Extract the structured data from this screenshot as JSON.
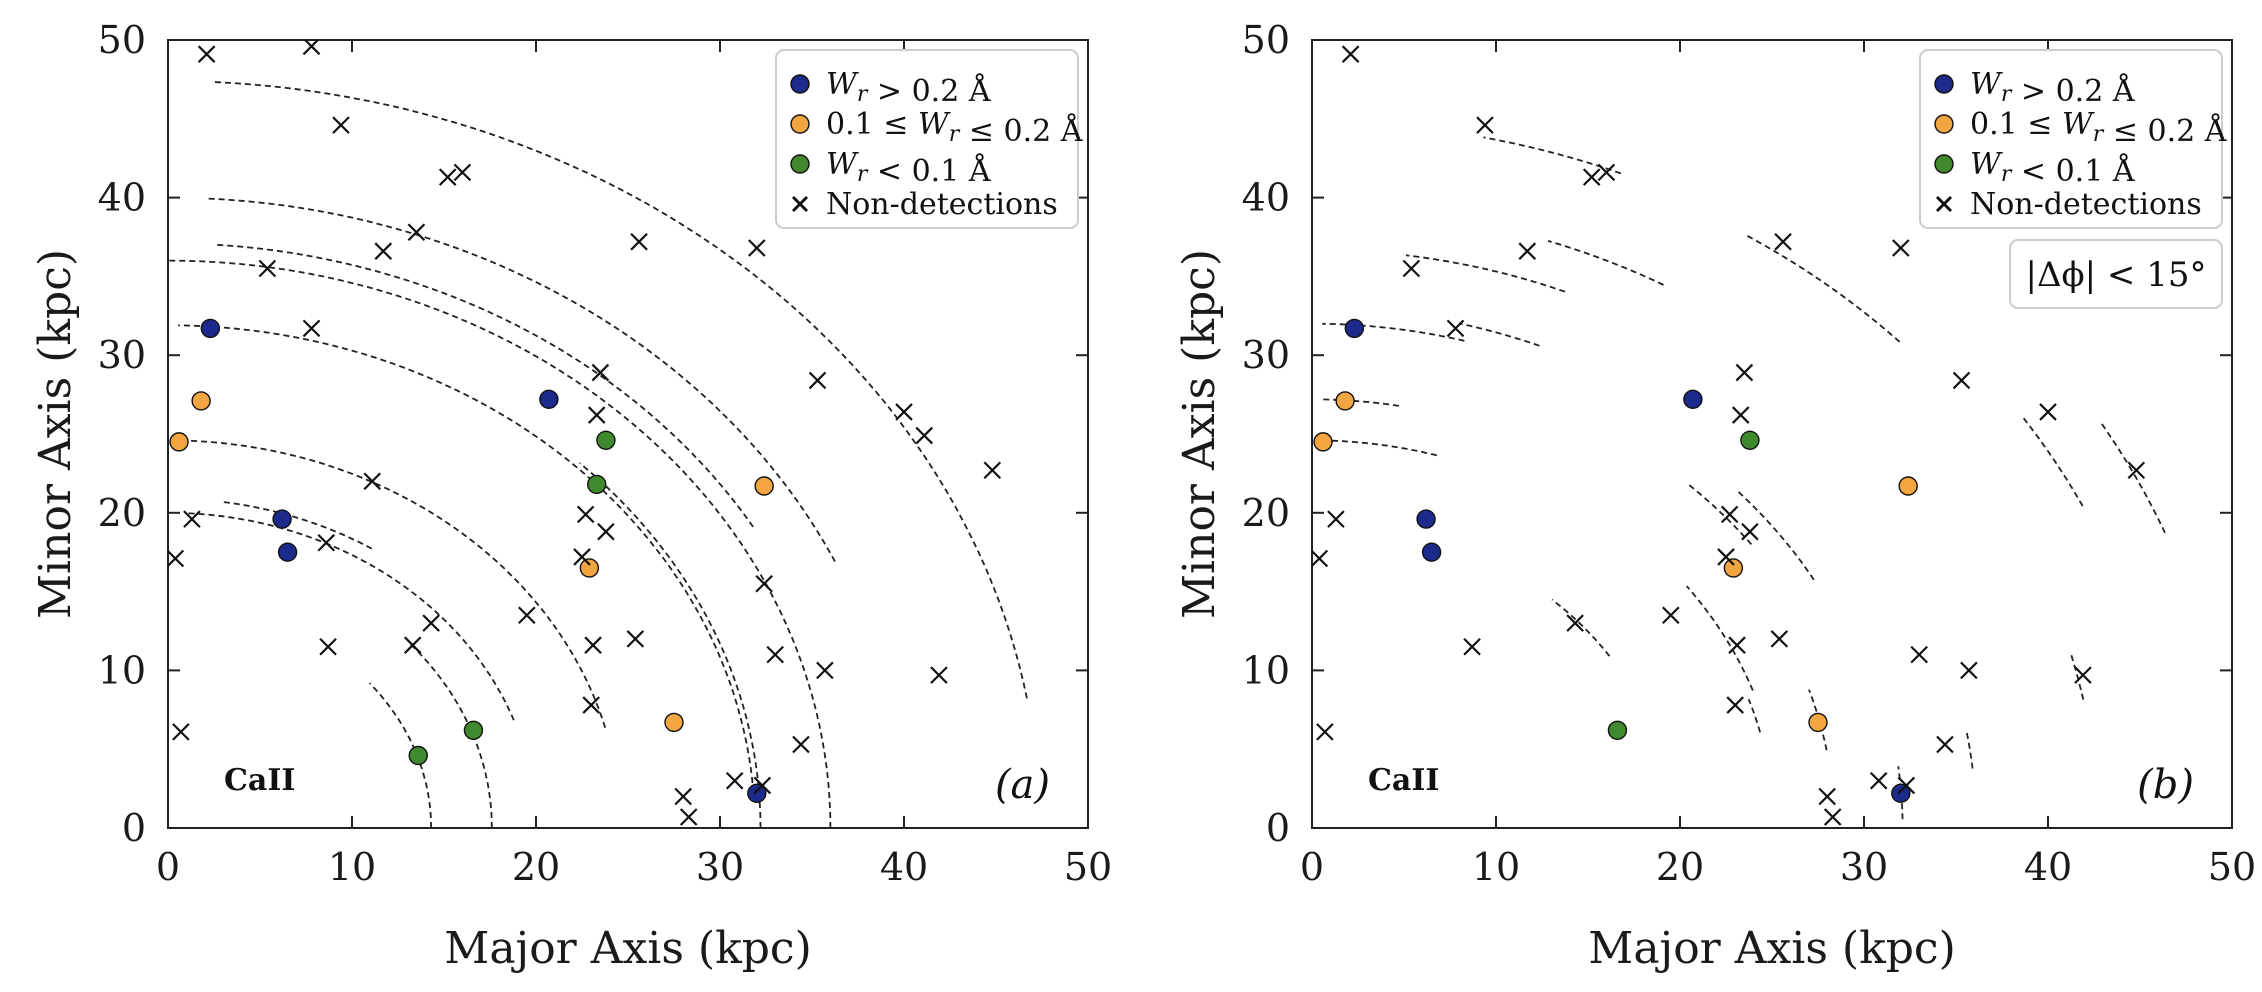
{
  "colors": {
    "strong": "#1c2a8c",
    "medium": "#f2a541",
    "weak": "#3f8a2e",
    "nondetection": "#111111",
    "arc": "#222222"
  },
  "chart_data": [
    {
      "type": "scatter",
      "panel_label": "(a)",
      "ion_label": "CaII",
      "angle_label": "",
      "xlabel": "Major Axis (kpc)",
      "ylabel": "Minor Axis (kpc)",
      "xlim": [
        0,
        50
      ],
      "ylim": [
        0,
        50
      ],
      "xticks": [
        "0",
        "10",
        "20",
        "30",
        "40",
        "50"
      ],
      "yticks": [
        "0",
        "10",
        "20",
        "30",
        "40",
        "50"
      ],
      "grid": false,
      "legend_position": "top-right",
      "legend": [
        {
          "key": "strong",
          "label": "W_r > 0.2 Å",
          "marker": "circle"
        },
        {
          "key": "medium",
          "label": "0.1 ≤ W_r ≤ 0.2 Å",
          "marker": "circle"
        },
        {
          "key": "weak",
          "label": "W_r < 0.1 Å",
          "marker": "circle"
        },
        {
          "key": "nondetection",
          "label": "Non-detections",
          "marker": "x"
        }
      ],
      "series": [
        {
          "key": "strong",
          "name": "W_r > 0.2 Å",
          "points": [
            [
              2.3,
              31.7
            ],
            [
              20.7,
              27.2
            ],
            [
              6.2,
              19.6
            ],
            [
              6.5,
              17.5
            ],
            [
              32.0,
              2.2
            ]
          ]
        },
        {
          "key": "medium",
          "name": "0.1 ≤ W_r ≤ 0.2 Å",
          "points": [
            [
              1.8,
              27.1
            ],
            [
              0.6,
              24.5
            ],
            [
              32.4,
              21.7
            ],
            [
              22.9,
              16.5
            ],
            [
              27.5,
              6.7
            ]
          ]
        },
        {
          "key": "weak",
          "name": "W_r < 0.1 Å",
          "points": [
            [
              23.8,
              24.6
            ],
            [
              23.3,
              21.8
            ],
            [
              16.6,
              6.2
            ],
            [
              13.6,
              4.6
            ]
          ]
        },
        {
          "key": "nondetection",
          "name": "Non-detections",
          "points": [
            [
              2.1,
              49.1
            ],
            [
              7.8,
              49.6
            ],
            [
              9.4,
              44.6
            ],
            [
              15.2,
              41.3
            ],
            [
              16.0,
              41.6
            ],
            [
              13.5,
              37.8
            ],
            [
              11.7,
              36.6
            ],
            [
              5.4,
              35.5
            ],
            [
              7.8,
              31.7
            ],
            [
              25.6,
              37.2
            ],
            [
              32.0,
              36.8
            ],
            [
              23.5,
              28.9
            ],
            [
              35.3,
              28.4
            ],
            [
              23.3,
              26.2
            ],
            [
              40.0,
              26.4
            ],
            [
              41.1,
              24.9
            ],
            [
              44.8,
              22.7
            ],
            [
              11.1,
              22.0
            ],
            [
              1.3,
              19.6
            ],
            [
              0.4,
              17.1
            ],
            [
              8.6,
              18.1
            ],
            [
              22.7,
              19.9
            ],
            [
              23.8,
              18.8
            ],
            [
              22.5,
              17.2
            ],
            [
              19.5,
              13.5
            ],
            [
              14.3,
              13.0
            ],
            [
              13.3,
              11.6
            ],
            [
              8.7,
              11.5
            ],
            [
              23.1,
              11.6
            ],
            [
              25.4,
              12.0
            ],
            [
              32.4,
              15.5
            ],
            [
              33.0,
              11.0
            ],
            [
              35.7,
              10.0
            ],
            [
              41.9,
              9.7
            ],
            [
              23.0,
              7.8
            ],
            [
              34.4,
              5.3
            ],
            [
              0.7,
              6.1
            ],
            [
              28.0,
              2.0
            ],
            [
              28.3,
              0.7
            ],
            [
              30.8,
              3.0
            ],
            [
              32.3,
              2.7
            ]
          ]
        }
      ],
      "arcs": [
        {
          "r": 14.3,
          "a0": 0,
          "a1": 40
        },
        {
          "r": 17.6,
          "a0": 0,
          "a1": 42
        },
        {
          "r": 20.0,
          "a0": 20,
          "a1": 87
        },
        {
          "r": 24.6,
          "a0": 15,
          "a1": 89
        },
        {
          "r": 31.9,
          "a0": 4,
          "a1": 89
        },
        {
          "r": 32.2,
          "a0": 0,
          "a1": 46
        },
        {
          "r": 36.0,
          "a0": 0,
          "a1": 90
        },
        {
          "r": 40.0,
          "a0": 25,
          "a1": 87
        },
        {
          "r": 47.4,
          "a0": 10,
          "a1": 87
        },
        {
          "r": 20.9,
          "a0": 58,
          "a1": 82
        },
        {
          "r": 37.1,
          "a0": 31,
          "a1": 86
        }
      ]
    },
    {
      "type": "scatter",
      "panel_label": "(b)",
      "ion_label": "CaII",
      "angle_label": "|Δϕ| < 15°",
      "xlabel": "Major Axis (kpc)",
      "ylabel": "Minor Axis (kpc)",
      "xlim": [
        0,
        50
      ],
      "ylim": [
        0,
        50
      ],
      "xticks": [
        "0",
        "10",
        "20",
        "30",
        "40",
        "50"
      ],
      "yticks": [
        "0",
        "10",
        "20",
        "30",
        "40",
        "50"
      ],
      "grid": false,
      "legend_position": "top-right",
      "legend": [
        {
          "key": "strong",
          "label": "W_r > 0.2 Å",
          "marker": "circle"
        },
        {
          "key": "medium",
          "label": "0.1 ≤ W_r ≤ 0.2 Å",
          "marker": "circle"
        },
        {
          "key": "weak",
          "label": "W_r < 0.1 Å",
          "marker": "circle"
        },
        {
          "key": "nondetection",
          "label": "Non-detections",
          "marker": "x"
        }
      ],
      "series": [
        {
          "key": "strong",
          "name": "W_r > 0.2 Å",
          "points": [
            [
              2.3,
              31.7
            ],
            [
              20.7,
              27.2
            ],
            [
              6.2,
              19.6
            ],
            [
              6.5,
              17.5
            ],
            [
              32.0,
              2.2
            ]
          ]
        },
        {
          "key": "medium",
          "name": "0.1 ≤ W_r ≤ 0.2 Å",
          "points": [
            [
              1.8,
              27.1
            ],
            [
              0.6,
              24.5
            ],
            [
              32.4,
              21.7
            ],
            [
              22.9,
              16.5
            ],
            [
              27.5,
              6.7
            ]
          ]
        },
        {
          "key": "weak",
          "name": "W_r < 0.1 Å",
          "points": [
            [
              23.8,
              24.6
            ],
            [
              16.6,
              6.2
            ]
          ]
        },
        {
          "key": "nondetection",
          "name": "Non-detections",
          "points": [
            [
              2.1,
              49.1
            ],
            [
              9.4,
              44.6
            ],
            [
              15.2,
              41.3
            ],
            [
              16.0,
              41.6
            ],
            [
              11.7,
              36.6
            ],
            [
              5.4,
              35.5
            ],
            [
              7.8,
              31.7
            ],
            [
              25.6,
              37.2
            ],
            [
              32.0,
              36.8
            ],
            [
              23.5,
              28.9
            ],
            [
              35.3,
              28.4
            ],
            [
              23.3,
              26.2
            ],
            [
              40.0,
              26.4
            ],
            [
              44.8,
              22.7
            ],
            [
              1.3,
              19.6
            ],
            [
              0.4,
              17.1
            ],
            [
              22.7,
              19.9
            ],
            [
              23.8,
              18.8
            ],
            [
              22.5,
              17.2
            ],
            [
              19.5,
              13.5
            ],
            [
              14.3,
              13.0
            ],
            [
              8.7,
              11.5
            ],
            [
              23.1,
              11.6
            ],
            [
              25.4,
              12.0
            ],
            [
              33.0,
              11.0
            ],
            [
              35.7,
              10.0
            ],
            [
              41.9,
              9.7
            ],
            [
              23.0,
              7.8
            ],
            [
              34.4,
              5.3
            ],
            [
              0.7,
              6.1
            ],
            [
              28.0,
              2.0
            ],
            [
              28.3,
              0.7
            ],
            [
              30.8,
              3.0
            ],
            [
              32.3,
              2.7
            ]
          ]
        }
      ],
      "arcs": [
        {
          "r": 24.6,
          "a0": 74,
          "a1": 89
        },
        {
          "r": 27.2,
          "a0": 80,
          "a1": 89
        },
        {
          "r": 32.0,
          "a0": 75,
          "a1": 89
        },
        {
          "r": 36.7,
          "a0": 68,
          "a1": 82
        },
        {
          "r": 33.0,
          "a0": 68,
          "a1": 76
        },
        {
          "r": 44.4,
          "a0": 44,
          "a1": 58
        },
        {
          "r": 46.6,
          "a0": 26,
          "a1": 34
        },
        {
          "r": 50.0,
          "a0": 22,
          "a1": 31
        },
        {
          "r": 29.9,
          "a0": 37,
          "a1": 47
        },
        {
          "r": 31.5,
          "a0": 30,
          "a1": 43
        },
        {
          "r": 25.5,
          "a0": 20,
          "a1": 37
        },
        {
          "r": 19.5,
          "a0": 34,
          "a1": 48
        },
        {
          "r": 28.4,
          "a0": 10,
          "a1": 18
        },
        {
          "r": 25.1,
          "a0": 14,
          "a1": 19
        },
        {
          "r": 36.1,
          "a0": 6,
          "a1": 10
        },
        {
          "r": 42.7,
          "a0": 11,
          "a1": 15
        },
        {
          "r": 32.1,
          "a0": 1,
          "a1": 7
        },
        {
          "r": 44.8,
          "a0": 68,
          "a1": 78
        },
        {
          "r": 39.4,
          "a0": 61,
          "a1": 71
        }
      ]
    }
  ]
}
